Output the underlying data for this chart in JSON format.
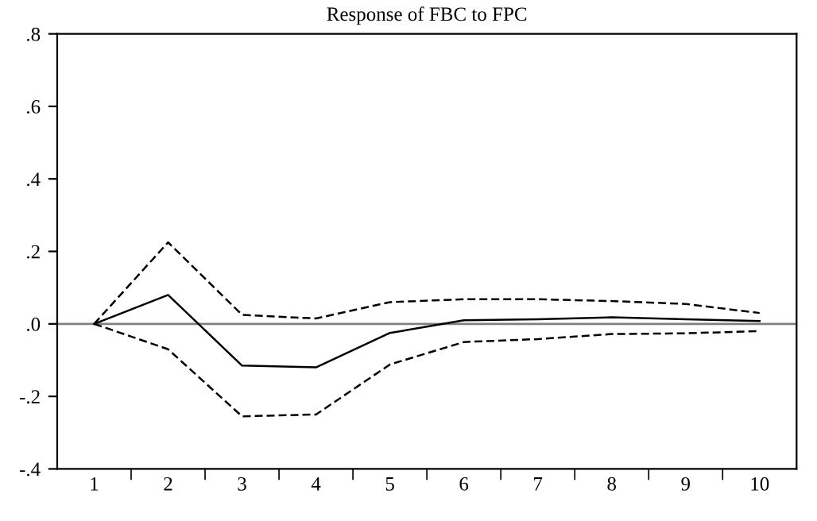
{
  "chart_data": {
    "type": "line",
    "title": "Response of FBC to FPC",
    "categories": [
      "1",
      "2",
      "3",
      "4",
      "5",
      "6",
      "7",
      "8",
      "9",
      "10"
    ],
    "series": [
      {
        "color": "#000000",
        "line_style": "solid",
        "values": [
          0,
          0.08,
          -0.115,
          -0.12,
          -0.025,
          0.01,
          0.013,
          0.018,
          0.013,
          0.008
        ]
      },
      {
        "color": "#000000",
        "line_style": "dashed",
        "values": [
          0,
          0.225,
          0.025,
          0.015,
          0.06,
          0.068,
          0.068,
          0.063,
          0.055,
          0.03
        ]
      },
      {
        "color": "#000000",
        "line_style": "dashed",
        "values": [
          0,
          -0.07,
          -0.255,
          -0.25,
          -0.112,
          -0.05,
          -0.042,
          -0.028,
          -0.026,
          -0.02
        ]
      }
    ],
    "ylim": [
      -0.4,
      0.8
    ],
    "yticks": [
      {
        "value": -0.4,
        "label": "-.4"
      },
      {
        "value": -0.2,
        "label": "-.2"
      },
      {
        "value": 0,
        "label": ".0"
      },
      {
        "value": 0.2,
        "label": ".2"
      },
      {
        "value": 0.4,
        "label": ".4"
      },
      {
        "value": 0.6,
        "label": ".6"
      },
      {
        "value": 0.8,
        "label": ".8"
      }
    ],
    "ref_lines": [
      {
        "axis": "y",
        "value": 0,
        "color": "#808080"
      }
    ],
    "grid": false,
    "legend": false
  }
}
